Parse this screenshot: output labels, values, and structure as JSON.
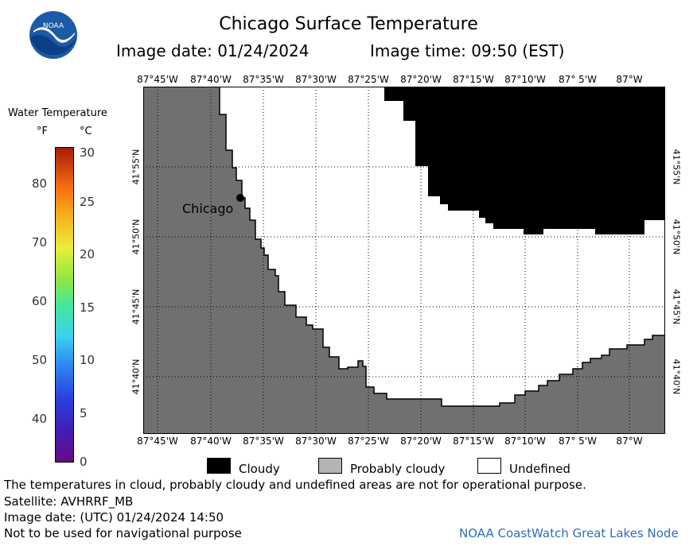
{
  "header": {
    "title": "Chicago Surface Temperature",
    "image_date": "Image date: 01/24/2024",
    "image_time": "Image time: 09:50 (EST)"
  },
  "logo": {
    "text": "NOAA"
  },
  "map": {
    "lon_labels": [
      "87°45'W",
      "87°40'W",
      "87°35'W",
      "87°30'W",
      "87°25'W",
      "87°20'W",
      "87°15'W",
      "87°10'W",
      "87° 5'W",
      "87°W"
    ],
    "lat_labels": [
      "41°55'N",
      "41°50'N",
      "41°45'N",
      "41°40'N"
    ],
    "city": {
      "name": "Chicago"
    },
    "colors": {
      "land": "#707070",
      "cloudy": "#000000",
      "undefined": "#ffffff"
    }
  },
  "scale": {
    "title": "Water Temperature",
    "unit_f": "°F",
    "unit_c": "°C",
    "f_ticks": [
      "80",
      "70",
      "60",
      "50",
      "40"
    ],
    "c_ticks": [
      "30",
      "25",
      "20",
      "15",
      "10",
      "5",
      "0"
    ]
  },
  "legend": {
    "cloudy": "Cloudy",
    "probably_cloudy": "Probably cloudy",
    "undefined": "Undefined",
    "colors": {
      "cloudy": "#000000",
      "probably_cloudy": "#b4b4b4",
      "undefined": "#ffffff"
    }
  },
  "footer": {
    "line1": "The temperatures in cloud, probably cloudy and undefined areas are not for operational purpose.",
    "line2": "Satellite: AVHRRF_MB",
    "line3": "Image date: (UTC) 01/24/2024  14:50",
    "line4": "Not to be used for navigational purpose",
    "credit": "NOAA CoastWatch Great Lakes Node"
  }
}
